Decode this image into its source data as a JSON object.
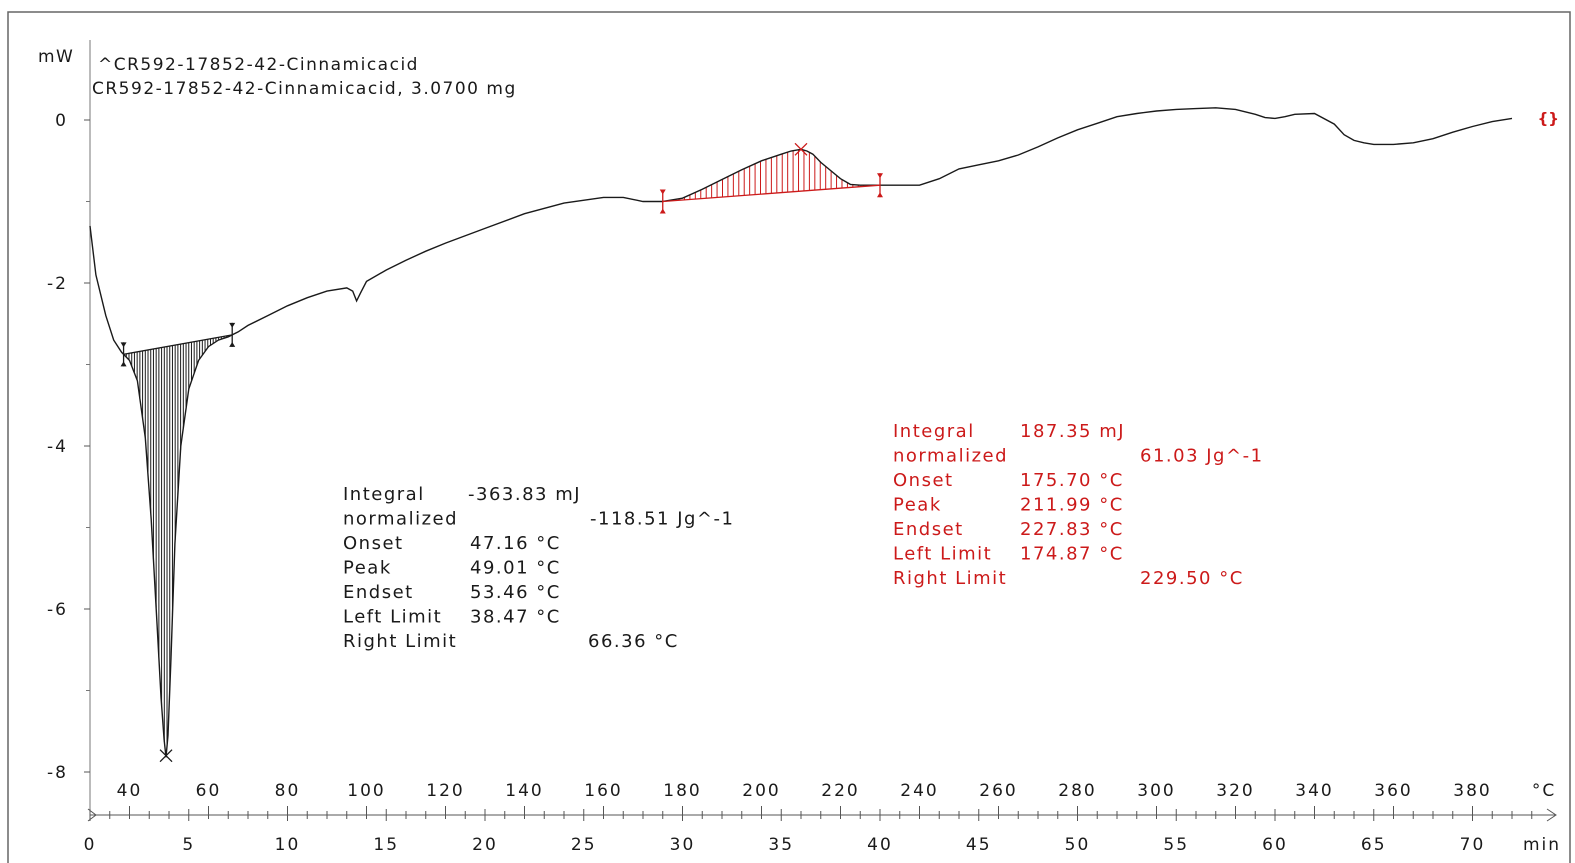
{
  "chart_data": {
    "type": "line",
    "y_unit": "mW",
    "sample_lines": [
      "^CR592-17852-42-Cinnamicacid",
      "CR592-17852-42-Cinnamicacid, 3.0700 mg"
    ],
    "ylim": [
      -8.3,
      1.2
    ],
    "yticks": [
      0,
      -2,
      -4,
      -6,
      -8
    ],
    "ytick_labels": [
      "0",
      "-2",
      "-4",
      "-6",
      "-8"
    ],
    "time_axis": {
      "unit": "min",
      "xlim": [
        0,
        74
      ],
      "ticks": [
        0,
        5,
        10,
        15,
        20,
        25,
        30,
        35,
        40,
        45,
        50,
        55,
        60,
        65,
        70
      ],
      "labels": [
        "0",
        "5",
        "10",
        "15",
        "20",
        "25",
        "30",
        "35",
        "40",
        "45",
        "50",
        "55",
        "60",
        "65",
        "70"
      ]
    },
    "temperature_axis": {
      "unit": "°C",
      "labels": [
        "40",
        "60",
        "80",
        "100",
        "120",
        "140",
        "160",
        "180",
        "200",
        "220",
        "240",
        "260",
        "280",
        "300",
        "320",
        "340",
        "360",
        "380"
      ],
      "ticks_min": [
        2,
        6,
        10,
        14,
        18,
        22,
        26,
        30,
        34,
        38,
        42,
        46,
        50,
        54,
        58,
        62,
        66,
        70
      ]
    },
    "curve": {
      "x_min": [
        0,
        0.3,
        0.8,
        1.2,
        1.6,
        2.0,
        2.4,
        2.8,
        3.1,
        3.4,
        3.6,
        3.75,
        3.85,
        3.95,
        4.1,
        4.3,
        4.6,
        5.0,
        5.5,
        6.0,
        6.5,
        7.0,
        7.5,
        8,
        9,
        10,
        11,
        12,
        13,
        13.3,
        13.5,
        13.7,
        14,
        15,
        16,
        17,
        18,
        20,
        22,
        24,
        26,
        27,
        28,
        29,
        30,
        31,
        32,
        33,
        34,
        35,
        35.5,
        36,
        36.3,
        36.6,
        37,
        37.5,
        38,
        38.5,
        39,
        39.5,
        40,
        41,
        42,
        43,
        44,
        45,
        46,
        47,
        48,
        49,
        50,
        51,
        52,
        53,
        54,
        55,
        56,
        57,
        58,
        59,
        59.5,
        60,
        60.5,
        61,
        62,
        63,
        63.5,
        64,
        64.5,
        65,
        66,
        67,
        68,
        69,
        70,
        71,
        72,
        73,
        74
      ],
      "y_mW": [
        -1.3,
        -1.9,
        -2.4,
        -2.7,
        -2.85,
        -2.95,
        -3.2,
        -3.9,
        -4.9,
        -6.2,
        -7.1,
        -7.6,
        -7.82,
        -7.55,
        -6.6,
        -5.2,
        -4.0,
        -3.3,
        -2.95,
        -2.78,
        -2.7,
        -2.66,
        -2.6,
        -2.52,
        -2.4,
        -2.28,
        -2.18,
        -2.1,
        -2.06,
        -2.1,
        -2.22,
        -2.12,
        -1.98,
        -1.84,
        -1.72,
        -1.61,
        -1.51,
        -1.33,
        -1.15,
        -1.02,
        -0.95,
        -0.95,
        -1.0,
        -1.0,
        -0.96,
        -0.85,
        -0.73,
        -0.61,
        -0.5,
        -0.42,
        -0.38,
        -0.36,
        -0.38,
        -0.42,
        -0.52,
        -0.62,
        -0.72,
        -0.79,
        -0.8,
        -0.8,
        -0.8,
        -0.8,
        -0.8,
        -0.72,
        -0.6,
        -0.55,
        -0.5,
        -0.43,
        -0.33,
        -0.22,
        -0.12,
        -0.04,
        0.04,
        0.08,
        0.11,
        0.13,
        0.14,
        0.15,
        0.13,
        0.07,
        0.03,
        0.02,
        0.04,
        0.07,
        0.08,
        -0.05,
        -0.18,
        -0.25,
        -0.28,
        -0.3,
        -0.3,
        -0.28,
        -0.23,
        -0.15,
        -0.08,
        -0.02,
        0.02
      ]
    },
    "peaks": [
      {
        "id": "endotherm",
        "color": "#1a1a1a",
        "left_limit_min": 1.7,
        "right_limit_min": 7.2,
        "peak_marker": {
          "x_min": 3.85,
          "y_mW": -7.8
        },
        "results": [
          {
            "label": "Integral",
            "value": "-363.83 mJ"
          },
          {
            "label": " normalized",
            "value": "-118.51 Jg^-1"
          },
          {
            "label": "Onset",
            "value": "47.16 °C"
          },
          {
            "label": "Peak",
            "value": "49.01 °C"
          },
          {
            "label": "Endset",
            "value": "53.46 °C"
          },
          {
            "label": "Left Limit",
            "value": "38.47 °C"
          },
          {
            "label": "Right Limit",
            "value": "66.36 °C"
          }
        ]
      },
      {
        "id": "exotherm",
        "color": "#cc1a1a",
        "left_limit_min": 29.0,
        "right_limit_min": 40.0,
        "peak_marker": {
          "x_min": 36.0,
          "y_mW": -0.36
        },
        "results": [
          {
            "label": "Integral",
            "value": "187.35 mJ"
          },
          {
            "label": " normalized",
            "value": "61.03 Jg^-1"
          },
          {
            "label": "Onset",
            "value": "175.70 °C"
          },
          {
            "label": "Peak",
            "value": "211.99 °C"
          },
          {
            "label": "Endset",
            "value": "227.83 °C"
          },
          {
            "label": "Left Limit",
            "value": "174.87 °C"
          },
          {
            "label": "Right Limit",
            "value": "229.50 °C"
          }
        ]
      }
    ],
    "end_marker": {
      "text": "{}",
      "x_min": 73.5,
      "y_mW": 0.02,
      "color": "#cc1a1a"
    },
    "colors": {
      "curve": "#1a1a1a",
      "frame": "#555555",
      "result_red": "#cc1a1a"
    }
  }
}
